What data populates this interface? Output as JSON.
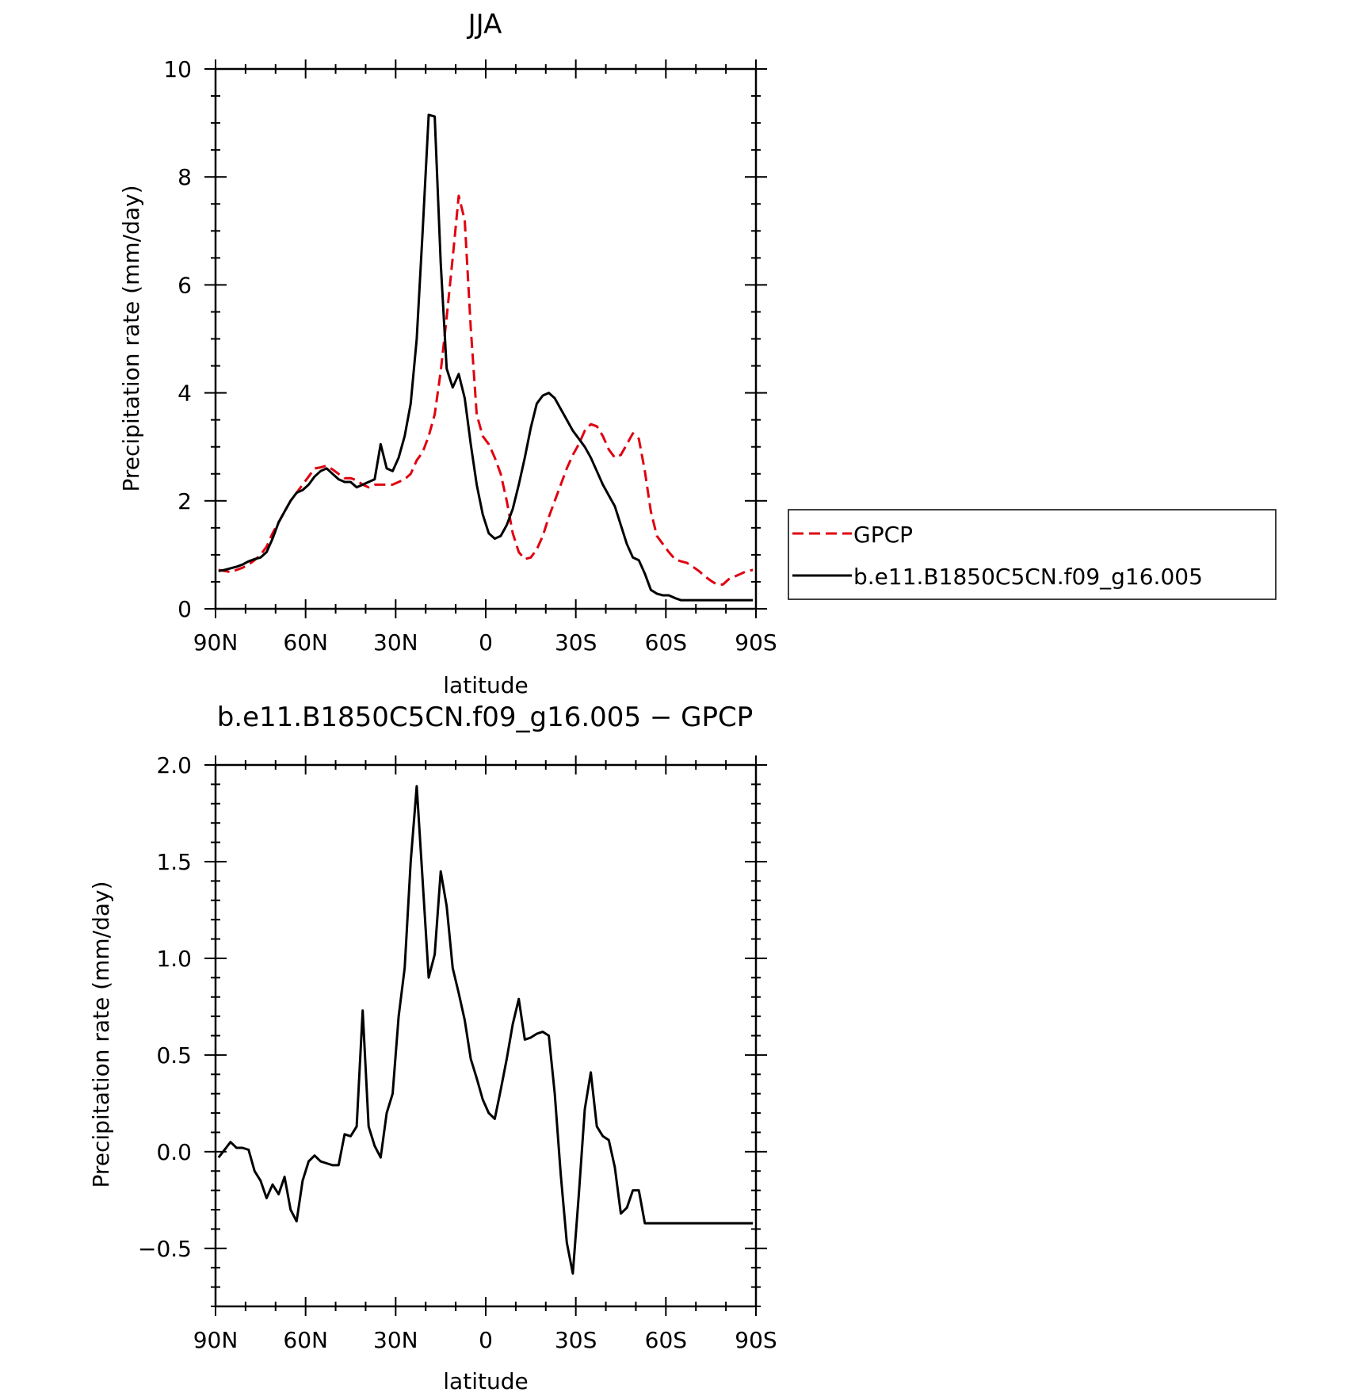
{
  "chart_data": [
    {
      "type": "line",
      "title": "JJA",
      "xlabel": "latitude",
      "ylabel": "Precipitation rate (mm/day)",
      "x_ticks": [
        "90N",
        "60N",
        "30N",
        "0",
        "30S",
        "60S",
        "90S"
      ],
      "y_ticks": [
        "0",
        "2",
        "4",
        "6",
        "8",
        "10"
      ],
      "xlim": [
        90,
        -90
      ],
      "ylim": [
        0,
        10
      ],
      "legend_position": "right",
      "series": [
        {
          "name": "GPCP",
          "color": "#e0000f",
          "dash": "dashed",
          "x": [
            89,
            87,
            85,
            83,
            81,
            79,
            77,
            75,
            73,
            71,
            69,
            67,
            65,
            63,
            61,
            59,
            57,
            55,
            53,
            51,
            49,
            47,
            45,
            43,
            41,
            39,
            37,
            35,
            33,
            31,
            29,
            27,
            25,
            23,
            21,
            19,
            17,
            15,
            13,
            11,
            9,
            7,
            5,
            3,
            1,
            -1,
            -3,
            -5,
            -7,
            -9,
            -11,
            -13,
            -15,
            -17,
            -19,
            -21,
            -23,
            -25,
            -27,
            -29,
            -31,
            -33,
            -35,
            -37,
            -39,
            -41,
            -43,
            -45,
            -47,
            -49,
            -51,
            -53,
            -55,
            -57,
            -59,
            -61,
            -63,
            -65,
            -67,
            -69,
            -71,
            -73,
            -75,
            -77,
            -79,
            -81,
            -83,
            -85,
            -87,
            -89
          ],
          "y": [
            0.72,
            0.7,
            0.68,
            0.72,
            0.76,
            0.82,
            0.9,
            1.0,
            1.15,
            1.4,
            1.6,
            1.8,
            2.0,
            2.15,
            2.3,
            2.45,
            2.6,
            2.62,
            2.65,
            2.58,
            2.5,
            2.42,
            2.42,
            2.38,
            2.3,
            2.25,
            2.3,
            2.3,
            2.3,
            2.3,
            2.35,
            2.4,
            2.5,
            2.75,
            2.9,
            3.2,
            3.6,
            4.4,
            5.4,
            6.5,
            7.65,
            7.2,
            5.2,
            3.6,
            3.2,
            3.05,
            2.8,
            2.5,
            2.0,
            1.4,
            1.05,
            0.92,
            0.95,
            1.1,
            1.35,
            1.7,
            2.0,
            2.3,
            2.6,
            2.85,
            3.05,
            3.3,
            3.42,
            3.38,
            3.2,
            2.95,
            2.8,
            2.85,
            3.05,
            3.25,
            3.15,
            2.55,
            1.8,
            1.35,
            1.2,
            1.05,
            0.92,
            0.88,
            0.85,
            0.78,
            0.7,
            0.6,
            0.52,
            0.45,
            0.45,
            0.55,
            0.6,
            0.65,
            0.7,
            0.72
          ]
        },
        {
          "name": "b.e11.B1850C5CN.f09_g16.005",
          "color": "#000000",
          "dash": "solid",
          "x": [
            89,
            87,
            85,
            83,
            81,
            79,
            77,
            75,
            73,
            71,
            69,
            67,
            65,
            63,
            61,
            59,
            57,
            55,
            53,
            51,
            49,
            47,
            45,
            43,
            41,
            39,
            37,
            35,
            33,
            31,
            29,
            27,
            25,
            23,
            21,
            19,
            17,
            15,
            13,
            11,
            9,
            7,
            5,
            3,
            1,
            -1,
            -3,
            -5,
            -7,
            -9,
            -11,
            -13,
            -15,
            -17,
            -19,
            -21,
            -23,
            -25,
            -27,
            -29,
            -31,
            -33,
            -35,
            -37,
            -39,
            -41,
            -43,
            -45,
            -47,
            -49,
            -51,
            -53,
            -55,
            -57,
            -59,
            -61,
            -63,
            -65,
            -67,
            -69,
            -71,
            -73,
            -75,
            -77,
            -79,
            -81,
            -83,
            -85,
            -87,
            -89
          ],
          "y": [
            0.7,
            0.72,
            0.75,
            0.78,
            0.82,
            0.88,
            0.92,
            0.95,
            1.05,
            1.3,
            1.6,
            1.8,
            2.0,
            2.15,
            2.2,
            2.3,
            2.45,
            2.55,
            2.6,
            2.5,
            2.4,
            2.35,
            2.35,
            2.25,
            2.3,
            2.35,
            2.4,
            3.05,
            2.6,
            2.55,
            2.8,
            3.2,
            3.8,
            5.0,
            7.0,
            9.15,
            9.12,
            6.4,
            4.45,
            4.1,
            4.35,
            3.9,
            3.05,
            2.3,
            1.75,
            1.4,
            1.3,
            1.35,
            1.55,
            1.85,
            2.3,
            2.8,
            3.35,
            3.8,
            3.95,
            4.0,
            3.9,
            3.7,
            3.5,
            3.3,
            3.15,
            3.0,
            2.8,
            2.55,
            2.3,
            2.1,
            1.9,
            1.55,
            1.2,
            0.95,
            0.9,
            0.65,
            0.35,
            0.28,
            0.25,
            0.25,
            0.2,
            0.16,
            0.16,
            0.16,
            0.16,
            0.16,
            0.16,
            0.16,
            0.16,
            0.16,
            0.16,
            0.16,
            0.16,
            0.16
          ]
        }
      ]
    },
    {
      "type": "line",
      "title": "b.e11.B1850C5CN.f09_g16.005 − GPCP",
      "xlabel": "latitude",
      "ylabel": "Precipitation rate (mm/day)",
      "x_ticks": [
        "90N",
        "60N",
        "30N",
        "0",
        "30S",
        "60S",
        "90S"
      ],
      "y_ticks": [
        "−0.5",
        "0.0",
        "0.5",
        "1.0",
        "1.5",
        "2.0"
      ],
      "xlim": [
        90,
        -90
      ],
      "ylim": [
        -0.8,
        2.0
      ],
      "series": [
        {
          "color": "#000000",
          "dash": "solid",
          "x": [
            89,
            87,
            85,
            83,
            81,
            79,
            77,
            75,
            73,
            71,
            69,
            67,
            65,
            63,
            61,
            59,
            57,
            55,
            53,
            51,
            49,
            47,
            45,
            43,
            41,
            39,
            37,
            35,
            33,
            31,
            29,
            27,
            25,
            23,
            21,
            19,
            17,
            15,
            13,
            11,
            9,
            7,
            5,
            3,
            1,
            -1,
            -3,
            -5,
            -7,
            -9,
            -11,
            -13,
            -15,
            -17,
            -19,
            -21,
            -23,
            -25,
            -27,
            -29,
            -31,
            -33,
            -35,
            -37,
            -39,
            -41,
            -43,
            -45,
            -47,
            -49,
            -51,
            -53,
            -55,
            -57,
            -59,
            -61,
            -63,
            -65,
            -67,
            -69,
            -71,
            -73,
            -75,
            -77,
            -79,
            -81,
            -83,
            -85,
            -87,
            -89
          ],
          "y": [
            -0.03,
            0.01,
            0.05,
            0.02,
            0.02,
            0.01,
            -0.1,
            -0.15,
            -0.24,
            -0.17,
            -0.22,
            -0.13,
            -0.3,
            -0.36,
            -0.15,
            -0.05,
            -0.02,
            -0.05,
            -0.06,
            -0.07,
            -0.07,
            0.09,
            0.08,
            0.13,
            0.73,
            0.13,
            0.03,
            -0.03,
            0.2,
            0.3,
            0.7,
            0.95,
            1.5,
            1.89,
            1.4,
            0.9,
            1.02,
            1.45,
            1.27,
            0.95,
            0.82,
            0.68,
            0.48,
            0.38,
            0.27,
            0.2,
            0.17,
            0.32,
            0.48,
            0.66,
            0.79,
            0.58,
            0.59,
            0.61,
            0.62,
            0.6,
            0.3,
            -0.12,
            -0.47,
            -0.63,
            -0.22,
            0.22,
            0.41,
            0.13,
            0.08,
            0.06,
            -0.08,
            -0.32,
            -0.29,
            -0.2,
            -0.2,
            -0.37,
            -0.37,
            -0.37,
            -0.37,
            -0.37,
            -0.37,
            -0.37,
            -0.37,
            -0.37,
            -0.37,
            -0.37,
            -0.37,
            -0.37,
            -0.37,
            -0.37,
            -0.37,
            -0.37,
            -0.37,
            -0.37
          ]
        }
      ]
    }
  ]
}
